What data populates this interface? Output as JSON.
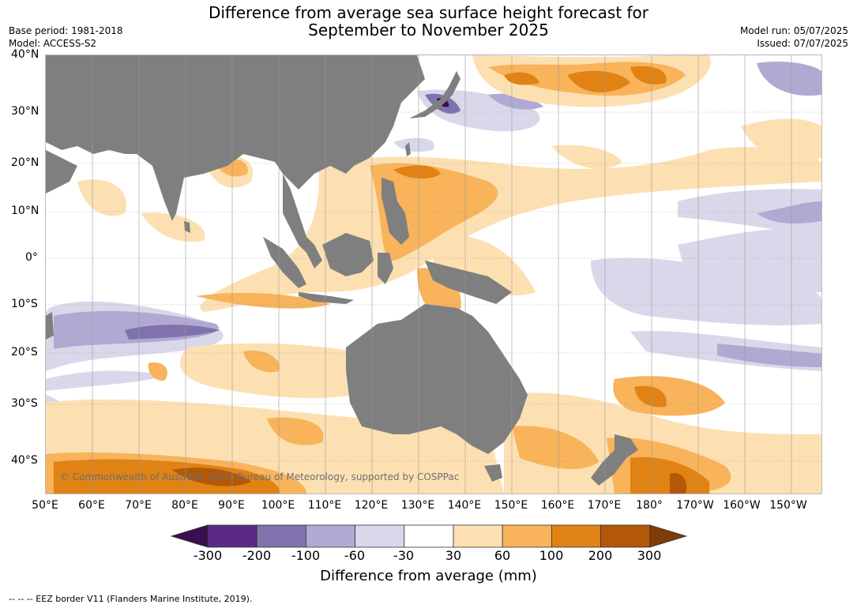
{
  "header": {
    "title_line1": "Difference from average sea surface height forecast for",
    "title_line2": "September to November 2025",
    "base_period": "Base period: 1981-2018",
    "model": "Model: ACCESS-S2",
    "model_run": "Model run: 05/07/2025",
    "issued": "Issued: 07/07/2025"
  },
  "map": {
    "lat_labels": [
      "40°N",
      "30°N",
      "20°N",
      "10°N",
      "0°",
      "10°S",
      "20°S",
      "30°S",
      "40°S"
    ],
    "lon_labels": [
      "50°E",
      "60°E",
      "70°E",
      "80°E",
      "90°E",
      "100°E",
      "110°E",
      "120°E",
      "130°E",
      "140°E",
      "150°E",
      "160°E",
      "170°E",
      "180°",
      "170°W",
      "160°W",
      "150°W"
    ],
    "copyright": "© Commonwealth of Australia 2025, Bureau of Meteorology, supported by COSPPac",
    "land_color": "#7f7f7f"
  },
  "colorbar": {
    "title": "Difference from average (mm)",
    "ticks": [
      "-300",
      "-200",
      "-100",
      "-60",
      "-30",
      "30",
      "60",
      "100",
      "200",
      "300"
    ],
    "colors": [
      "#3b0f4f",
      "#5b2a86",
      "#8072ac",
      "#b0a9d2",
      "#d8d8ea",
      "#ffffff",
      "#fde0b2",
      "#f8b35b",
      "#e08214",
      "#b35806",
      "#7f3b08"
    ]
  },
  "footer": {
    "eez_note": "--  --  -- EEZ border V11 (Flanders Marine Institute, 2019)."
  }
}
